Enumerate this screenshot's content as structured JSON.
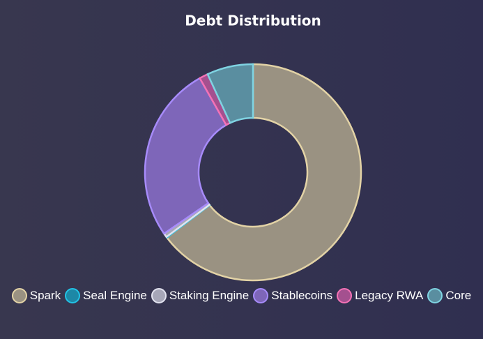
{
  "chart_data": {
    "type": "doughnut",
    "title": "Debt Distribution",
    "categories": [
      "Spark",
      "Seal Engine",
      "Staking Engine",
      "Stablecoins",
      "Legacy RWA",
      "Core"
    ],
    "values": [
      64.7,
      0.1,
      0.6,
      26.4,
      1.3,
      6.9
    ],
    "colors": [
      "#9a9282",
      "#1d88a6",
      "#a6a6b8",
      "#7e66b9",
      "#a4508f",
      "#5a8ea0"
    ],
    "border_colors": [
      "#e3d3a6",
      "#22c3e6",
      "#e2e2ef",
      "#a78bfa",
      "#f472b6",
      "#7fd3e2"
    ]
  }
}
